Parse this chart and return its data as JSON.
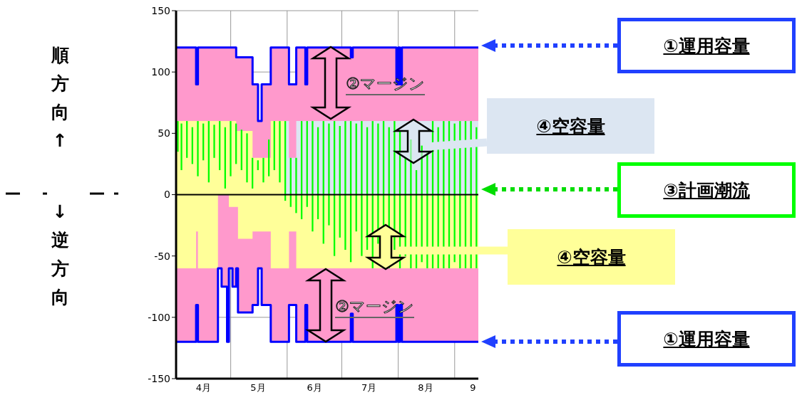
{
  "chart_data": {
    "type": "area",
    "xlim": [
      "--04-01",
      "--09-14"
    ],
    "xticks": [
      {
        "value": "--04-16",
        "label": "4月"
      },
      {
        "value": "--05-01",
        "label": null
      },
      {
        "value": "--05-16",
        "label": "5月"
      },
      {
        "value": "--06-01",
        "label": null
      },
      {
        "value": "--06-16",
        "label": "6月"
      },
      {
        "value": "--07-01",
        "label": null
      },
      {
        "value": "--07-16",
        "label": "7月"
      },
      {
        "value": "--08-01",
        "label": null
      },
      {
        "value": "--08-16",
        "label": "8月"
      },
      {
        "value": "--09-01",
        "label": null
      },
      {
        "value": "--09-11",
        "label": "9"
      }
    ],
    "ylim": [
      -150,
      150
    ],
    "yticks": [
      -150,
      -100,
      -50,
      0,
      50,
      100,
      150
    ],
    "grid": true,
    "ref_lines": [
      {
        "axis": "y",
        "value": 0,
        "color": "#000000"
      }
    ],
    "series": [
      {
        "color": "#ff99cc",
        "x": [
          "--04-01",
          "--04-12",
          "--04-13",
          "--05-04",
          "--05-13",
          "--05-16",
          "--05-18",
          "--05-23",
          "--06-02",
          "--06-06",
          "--06-11",
          "--06-12",
          "--07-06",
          "--07-07",
          "--07-31",
          "--08-01",
          "--08-02",
          "--08-03",
          "--09-14"
        ],
        "values": [
          120,
          90,
          120,
          112,
          90,
          60,
          90,
          120,
          90,
          120,
          90,
          120,
          112,
          120,
          90,
          120,
          90,
          120,
          120
        ]
      },
      {
        "color": "#ff99cc",
        "x": [
          "--04-01",
          "--04-12",
          "--04-13",
          "--04-24",
          "--04-26",
          "--04-29",
          "--04-30",
          "--05-02",
          "--05-04",
          "--05-05",
          "--05-13",
          "--05-16",
          "--05-18",
          "--05-23",
          "--06-02",
          "--06-06",
          "--06-11",
          "--06-12",
          "--07-06",
          "--07-07",
          "--07-31",
          "--08-01",
          "--08-02",
          "--08-03",
          "--09-14"
        ],
        "values": [
          -120,
          -90,
          -120,
          -60,
          -75,
          -120,
          -60,
          -75,
          -60,
          -96,
          -90,
          -60,
          -90,
          -120,
          -90,
          -120,
          -90,
          -120,
          -97,
          -120,
          -90,
          -120,
          -90,
          -120,
          -120
        ]
      },
      {
        "color": "#ffff99",
        "x": [
          "--04-01",
          "--05-04",
          "--05-13",
          "--05-23",
          "--05-31"
        ],
        "values": [
          60,
          52,
          30,
          60,
          60
        ]
      },
      {
        "color": "#dce6f2",
        "x": [
          "--05-31",
          "--06-02",
          "--06-06",
          "--09-14"
        ],
        "values": [
          60,
          30,
          60,
          60
        ]
      },
      {
        "color": "#ffff99",
        "x": [
          "--04-01",
          "--04-12",
          "--04-13",
          "--04-24",
          "--04-30",
          "--05-05",
          "--05-13",
          "--05-23",
          "--06-02",
          "--06-06",
          "--09-14"
        ],
        "values": [
          -60,
          -30,
          -60,
          0,
          -10,
          -36,
          -30,
          -60,
          -30,
          -60,
          -60
        ]
      },
      {
        "type": "bar",
        "color": "#00ff00",
        "x": [
          "--04-02",
          "--04-04",
          "--04-07",
          "--04-10",
          "--04-13",
          "--04-16",
          "--04-19",
          "--04-22",
          "--04-25",
          "--04-28",
          "--05-01",
          "--05-04",
          "--05-07",
          "--05-10",
          "--05-13",
          "--05-16",
          "--05-19",
          "--05-22",
          "--05-25",
          "--05-28",
          "--05-31",
          "--06-03",
          "--06-06",
          "--06-09",
          "--06-12",
          "--06-15",
          "--06-18",
          "--06-21",
          "--06-24",
          "--06-27",
          "--06-30",
          "--07-03",
          "--07-06",
          "--07-09",
          "--07-12",
          "--07-15",
          "--07-18",
          "--07-21",
          "--07-24",
          "--07-27",
          "--07-30",
          "--08-02",
          "--08-05",
          "--08-08",
          "--08-11",
          "--08-14",
          "--08-17",
          "--08-20",
          "--08-23",
          "--08-26",
          "--08-29",
          "--09-01",
          "--09-04",
          "--09-07",
          "--09-10",
          "--09-13"
        ],
        "values": [
          25,
          38,
          30,
          30,
          45,
          30,
          50,
          27,
          40,
          50,
          45,
          33,
          33,
          40,
          25,
          8,
          20,
          30,
          40,
          50,
          65,
          40,
          45,
          80,
          70,
          90,
          75,
          100,
          83,
          110,
          91,
          105,
          115,
          88,
          110,
          100,
          120,
          98,
          115,
          115,
          105,
          112,
          80,
          105,
          80,
          95,
          95,
          120,
          115,
          120,
          120,
          113,
          120,
          120,
          120,
          115
        ],
        "base": [
          35,
          20,
          30,
          25,
          15,
          28,
          10,
          30,
          20,
          5,
          15,
          25,
          20,
          10,
          5,
          20,
          10,
          15,
          20,
          10,
          -5,
          -10,
          -15,
          -20,
          -10,
          -30,
          -20,
          -40,
          -25,
          -50,
          -35,
          -45,
          -55,
          -30,
          -50,
          -45,
          -60,
          -40,
          -55,
          -60,
          -45,
          -60,
          -50,
          -60,
          -60,
          -55,
          -60,
          -60,
          -60,
          -60,
          -60,
          -55,
          -60,
          -60,
          -60,
          -60
        ]
      },
      {
        "type": "step",
        "color": "#0000ff",
        "x": [
          "--04-01",
          "--04-12",
          "--04-13",
          "--05-04",
          "--05-13",
          "--05-16",
          "--05-18",
          "--05-23",
          "--06-02",
          "--06-06",
          "--06-11",
          "--06-12",
          "--07-06",
          "--07-07",
          "--07-31",
          "--08-01",
          "--08-02",
          "--08-03",
          "--09-14"
        ],
        "values": [
          120,
          90,
          120,
          112,
          90,
          60,
          90,
          120,
          90,
          120,
          90,
          120,
          112,
          120,
          90,
          120,
          90,
          120,
          120
        ]
      },
      {
        "type": "step",
        "color": "#0000ff",
        "x": [
          "--04-01",
          "--04-12",
          "--04-13",
          "--04-24",
          "--04-26",
          "--04-29",
          "--04-30",
          "--05-02",
          "--05-04",
          "--05-05",
          "--05-13",
          "--05-16",
          "--05-18",
          "--05-23",
          "--06-02",
          "--06-06",
          "--06-11",
          "--06-12",
          "--07-06",
          "--07-07",
          "--07-31",
          "--08-01",
          "--08-02",
          "--08-03",
          "--09-14"
        ],
        "values": [
          -120,
          -90,
          -120,
          -60,
          -75,
          -120,
          -60,
          -75,
          -60,
          -96,
          -90,
          -60,
          -90,
          -120,
          -90,
          -120,
          -90,
          -120,
          -97,
          -120,
          -90,
          -120,
          -90,
          -120,
          -120
        ]
      }
    ],
    "annotations": [
      "順方向↑",
      "↓逆方向",
      "①運用容量",
      "②マージン",
      "④空容量",
      "③計画潮流",
      "④空容量",
      "②マージン",
      "①運用容量"
    ]
  }
}
